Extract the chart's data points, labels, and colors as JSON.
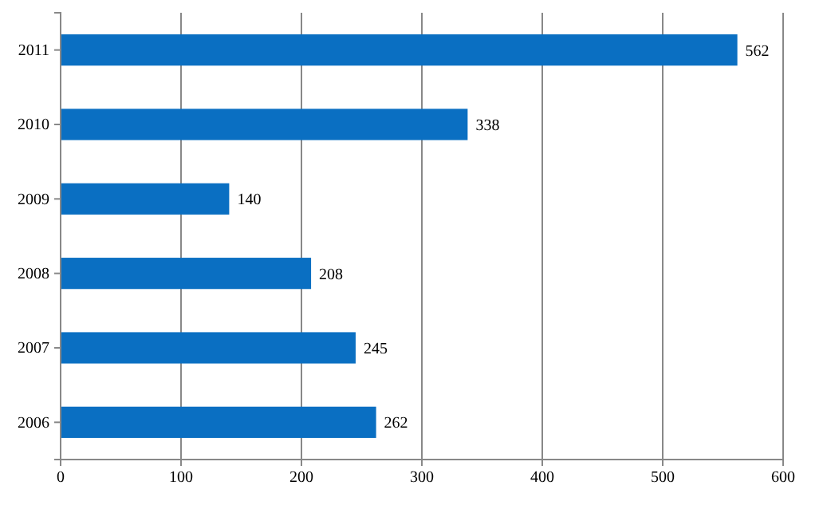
{
  "chart_data": {
    "type": "bar",
    "orientation": "horizontal",
    "categories": [
      "2011",
      "2010",
      "2009",
      "2008",
      "2007",
      "2006"
    ],
    "values": [
      562,
      338,
      140,
      208,
      245,
      262
    ],
    "color": "#0a6fc2",
    "xlim": [
      0,
      600
    ],
    "xticks": [
      0,
      100,
      200,
      300,
      400,
      500,
      600
    ],
    "grid": "x",
    "data_labels": true
  }
}
